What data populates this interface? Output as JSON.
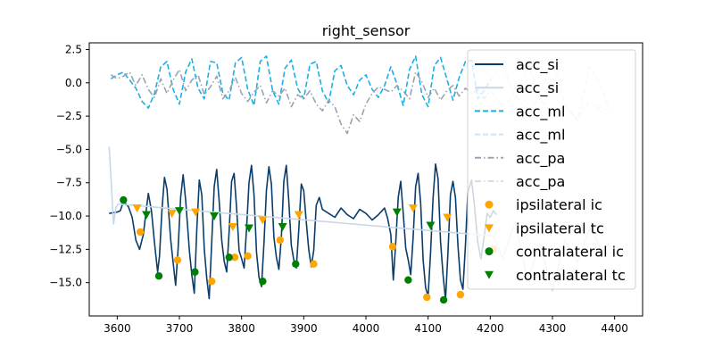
{
  "chart_data": {
    "type": "line",
    "title": "right_sensor",
    "xlabel": "",
    "ylabel": "",
    "xlim": [
      3555,
      4445
    ],
    "ylim": [
      -17.5,
      3.0
    ],
    "xticks": [
      3600,
      3700,
      3800,
      3900,
      4000,
      4100,
      4200,
      4300,
      4400
    ],
    "yticks": [
      2.5,
      0.0,
      -2.5,
      -5.0,
      -7.5,
      -10.0,
      -12.5,
      -15.0
    ],
    "ytick_labels": [
      "2.5",
      "0.0",
      "−2.5",
      "−5.0",
      "−7.5",
      "−10.0",
      "−12.5",
      "−15.0"
    ],
    "grid": false,
    "legend_position": "top-right",
    "legend": [
      {
        "label": "acc_si",
        "kind": "line",
        "color": "#0b3d6b",
        "dash": "solid"
      },
      {
        "label": "acc_si",
        "kind": "line",
        "color": "#c6d8e8",
        "dash": "solid"
      },
      {
        "label": "acc_ml",
        "kind": "line",
        "color": "#1ab0e6",
        "dash": "dashed"
      },
      {
        "label": "acc_ml",
        "kind": "line",
        "color": "#c8e6f4",
        "dash": "dashed"
      },
      {
        "label": "acc_pa",
        "kind": "line",
        "color": "#9aa3af",
        "dash": "dashdot"
      },
      {
        "label": "acc_pa",
        "kind": "line",
        "color": "#d8dde3",
        "dash": "dashdot"
      },
      {
        "label": "ipsilateral ic",
        "kind": "circle",
        "color": "#ffa500"
      },
      {
        "label": "ipsilateral tc",
        "kind": "triangle",
        "color": "#ffa500"
      },
      {
        "label": "contralateral ic",
        "kind": "circle",
        "color": "#008000"
      },
      {
        "label": "contralateral tc",
        "kind": "triangle",
        "color": "#008000"
      }
    ],
    "series": [
      {
        "name": "acc_si",
        "color": "#0b3d6b",
        "dash": "solid",
        "x": [
          3587,
          3600,
          3605,
          3610,
          3618,
          3624,
          3630,
          3636,
          3642,
          3646,
          3650,
          3655,
          3660,
          3665,
          3668,
          3672,
          3676,
          3680,
          3686,
          3690,
          3694,
          3698,
          3702,
          3706,
          3710,
          3716,
          3720,
          3724,
          3728,
          3732,
          3736,
          3740,
          3744,
          3748,
          3752,
          3756,
          3760,
          3764,
          3768,
          3772,
          3776,
          3780,
          3784,
          3788,
          3792,
          3796,
          3800,
          3804,
          3808,
          3812,
          3816,
          3820,
          3824,
          3828,
          3832,
          3836,
          3840,
          3844,
          3848,
          3852,
          3856,
          3860,
          3864,
          3868,
          3872,
          3876,
          3880,
          3884,
          3888,
          3892,
          3896,
          3900,
          3904,
          3908,
          3912,
          3916,
          3920,
          3925,
          3930,
          3940,
          3950,
          3960,
          3970,
          3980,
          3990,
          4000,
          4010,
          4020,
          4030,
          4035,
          4040,
          4044,
          4048,
          4052,
          4056,
          4060,
          4064,
          4068,
          4072,
          4076,
          4080,
          4084,
          4088,
          4092,
          4096,
          4100,
          4104,
          4108,
          4112,
          4116,
          4120,
          4124,
          4128,
          4132,
          4136,
          4140,
          4144,
          4148,
          4152,
          4156,
          4160,
          4164,
          4170,
          4175,
          4180,
          4185,
          4190,
          4195,
          4200,
          4205,
          4210
        ],
        "y": [
          -9.8,
          -9.7,
          -9.6,
          -8.9,
          -9.3,
          -10.1,
          -11.8,
          -12.5,
          -11.4,
          -9.8,
          -8.3,
          -9.6,
          -12.0,
          -14.2,
          -13.0,
          -9.5,
          -7.1,
          -8.0,
          -11.8,
          -13.5,
          -15.2,
          -12.4,
          -8.6,
          -6.9,
          -8.8,
          -12.6,
          -14.4,
          -15.8,
          -11.0,
          -7.3,
          -8.4,
          -12.5,
          -14.7,
          -16.2,
          -12.0,
          -7.8,
          -6.5,
          -8.9,
          -11.8,
          -13.4,
          -14.2,
          -11.2,
          -7.4,
          -6.8,
          -9.4,
          -12.6,
          -13.2,
          -13.9,
          -11.0,
          -7.5,
          -6.2,
          -8.4,
          -12.7,
          -14.6,
          -15.3,
          -12.0,
          -8.1,
          -6.3,
          -7.6,
          -11.6,
          -13.1,
          -14.0,
          -11.5,
          -7.4,
          -6.2,
          -8.9,
          -12.2,
          -13.3,
          -13.9,
          -11.0,
          -7.6,
          -8.1,
          -10.4,
          -12.5,
          -13.8,
          -12.6,
          -9.2,
          -8.6,
          -9.5,
          -9.8,
          -10.1,
          -9.4,
          -9.9,
          -10.2,
          -9.5,
          -9.8,
          -10.3,
          -9.9,
          -9.4,
          -10.2,
          -11.4,
          -14.8,
          -12.0,
          -8.6,
          -7.4,
          -9.8,
          -12.4,
          -13.3,
          -14.4,
          -11.6,
          -7.8,
          -6.8,
          -9.0,
          -13.3,
          -15.4,
          -16.0,
          -12.8,
          -8.7,
          -6.1,
          -7.2,
          -11.9,
          -14.4,
          -16.3,
          -12.6,
          -8.4,
          -7.4,
          -8.6,
          -12.2,
          -14.8,
          -15.5,
          -12.2,
          -8.2,
          -7.3,
          -9.4,
          -12.0,
          -13.2,
          -11.6,
          -9.8,
          -10.1,
          -9.6,
          -9.9
        ]
      },
      {
        "name": "acc_si",
        "color": "#c6d8e8",
        "dash": "solid",
        "x": [
          3587,
          3590,
          3594,
          3598,
          3602,
          4205,
          4220,
          4240,
          4260,
          4280,
          4300,
          4320,
          4340,
          4360,
          4380,
          4390
        ],
        "y": [
          -4.8,
          -7.2,
          -10.6,
          -9.3,
          -9.1,
          -11.5,
          -13.2,
          -10.4,
          -14.8,
          -12.1,
          -15.6,
          -11.8,
          -13.5,
          -10.9,
          -12.6,
          -12.1
        ]
      },
      {
        "name": "acc_ml",
        "color": "#1ab0e6",
        "dash": "dashed",
        "x": [
          3590,
          3600,
          3610,
          3620,
          3630,
          3640,
          3650,
          3660,
          3670,
          3680,
          3690,
          3700,
          3710,
          3720,
          3730,
          3740,
          3750,
          3760,
          3770,
          3780,
          3790,
          3800,
          3810,
          3820,
          3830,
          3840,
          3850,
          3860,
          3870,
          3880,
          3890,
          3900,
          3910,
          3920,
          3930,
          3940,
          3950,
          3960,
          3970,
          3980,
          3990,
          4000,
          4010,
          4020,
          4030,
          4040,
          4050,
          4060,
          4070,
          4080,
          4090,
          4100,
          4110,
          4120,
          4130,
          4140,
          4150,
          4160,
          4170,
          4180,
          4190,
          4200
        ],
        "y": [
          0.3,
          0.6,
          0.8,
          0.2,
          -0.4,
          -1.4,
          -1.9,
          -0.8,
          1.2,
          1.6,
          -0.5,
          -1.6,
          0.8,
          1.8,
          -0.4,
          -1.2,
          1.6,
          1.5,
          -0.8,
          -1.3,
          1.5,
          1.9,
          -0.5,
          -1.7,
          1.6,
          2.0,
          -0.6,
          -1.6,
          1.1,
          1.7,
          -0.4,
          -1.2,
          1.4,
          1.6,
          -0.6,
          -1.5,
          0.9,
          1.3,
          -0.2,
          -0.9,
          0.2,
          0.6,
          -0.5,
          -1.1,
          -0.2,
          1.2,
          -0.1,
          -1.7,
          1.0,
          2.0,
          -0.9,
          -1.8,
          1.3,
          1.9,
          0.3,
          -1.3,
          0.4,
          1.6,
          1.7,
          -1.2,
          -0.6,
          0.2
        ]
      },
      {
        "name": "acc_ml",
        "color": "#c8e6f4",
        "dash": "dashed",
        "x": [
          4200,
          4220,
          4240,
          4260,
          4280,
          4300,
          4320,
          4340,
          4360,
          4380,
          4390
        ],
        "y": [
          0.2,
          1.4,
          -1.2,
          1.3,
          -0.9,
          1.8,
          -1.6,
          -2.8,
          1.2,
          -0.4,
          -1.8
        ]
      },
      {
        "name": "acc_pa",
        "color": "#9aa3af",
        "dash": "dashdot",
        "x": [
          3590,
          3600,
          3610,
          3620,
          3630,
          3640,
          3650,
          3660,
          3670,
          3680,
          3690,
          3700,
          3710,
          3720,
          3730,
          3740,
          3750,
          3760,
          3770,
          3780,
          3790,
          3800,
          3810,
          3820,
          3830,
          3840,
          3850,
          3860,
          3870,
          3880,
          3890,
          3900,
          3910,
          3920,
          3930,
          3940,
          3950,
          3960,
          3970,
          3980,
          3990,
          4000,
          4010,
          4020,
          4030,
          4040,
          4050,
          4060,
          4070,
          4080,
          4090,
          4100,
          4110,
          4120,
          4130,
          4140,
          4150,
          4160,
          4170,
          4180,
          4190,
          4200
        ],
        "y": [
          0.6,
          0.3,
          0.5,
          0.8,
          -0.2,
          0.6,
          -0.5,
          -1.1,
          0.3,
          -0.8,
          0.2,
          1.0,
          -0.6,
          0.2,
          0.6,
          -0.9,
          -0.3,
          0.5,
          -1.2,
          -0.6,
          0.4,
          -0.8,
          -1.4,
          -0.7,
          -0.2,
          -1.5,
          -0.6,
          -1.0,
          -0.4,
          -1.8,
          -0.9,
          -1.2,
          -0.6,
          -1.6,
          -2.1,
          -1.3,
          -1.8,
          -3.1,
          -3.8,
          -2.4,
          -2.9,
          -1.6,
          -0.8,
          -0.3,
          -0.5,
          -0.7,
          -0.2,
          -0.6,
          -1.2,
          0.8,
          0.1,
          -1.1,
          -0.4,
          -1.3,
          -0.6,
          -0.2,
          -1.0,
          -0.4,
          -0.8,
          -0.5,
          -1.2,
          -0.6
        ]
      },
      {
        "name": "acc_pa",
        "color": "#d8dde3",
        "dash": "dashdot",
        "x": [
          4200,
          4220,
          4240,
          4260,
          4280,
          4300,
          4320,
          4340,
          4360,
          4380,
          4390
        ],
        "y": [
          -0.6,
          -1.8,
          -0.9,
          -2.1,
          -1.2,
          -2.4,
          -1.8,
          -2.7,
          -1.4,
          -2.2,
          -1.9
        ]
      }
    ],
    "markers": [
      {
        "name": "ipsilateral ic",
        "shape": "circle",
        "color": "#ffa500",
        "x": [
          3637,
          3697,
          3752,
          3789,
          3810,
          3862,
          3916,
          4043,
          4098,
          4152,
          4205
        ],
        "y": [
          -11.2,
          -13.3,
          -14.9,
          -13.1,
          -13.0,
          -11.8,
          -13.6,
          -12.3,
          -16.1,
          -15.9,
          -12.5
        ]
      },
      {
        "name": "ipsilateral tc",
        "shape": "triangle",
        "color": "#ffa500",
        "x": [
          3632,
          3688,
          3726,
          3786,
          3834,
          3892,
          4076,
          4131
        ],
        "y": [
          -9.4,
          -9.8,
          -9.7,
          -10.8,
          -10.3,
          -9.9,
          -9.4,
          -10.1
        ]
      },
      {
        "name": "contralateral ic",
        "shape": "circle",
        "color": "#008000",
        "x": [
          3610,
          3667,
          3725,
          3780,
          3834,
          3887,
          4068,
          4125
        ],
        "y": [
          -8.8,
          -14.5,
          -14.2,
          -13.1,
          -14.9,
          -13.6,
          -14.8,
          -16.3
        ]
      },
      {
        "name": "contralateral tc",
        "shape": "triangle",
        "color": "#008000",
        "x": [
          3647,
          3700,
          3756,
          3812,
          3866,
          4050,
          4104
        ],
        "y": [
          -9.9,
          -9.6,
          -10.0,
          -10.9,
          -10.8,
          -9.7,
          -10.7
        ]
      }
    ]
  }
}
